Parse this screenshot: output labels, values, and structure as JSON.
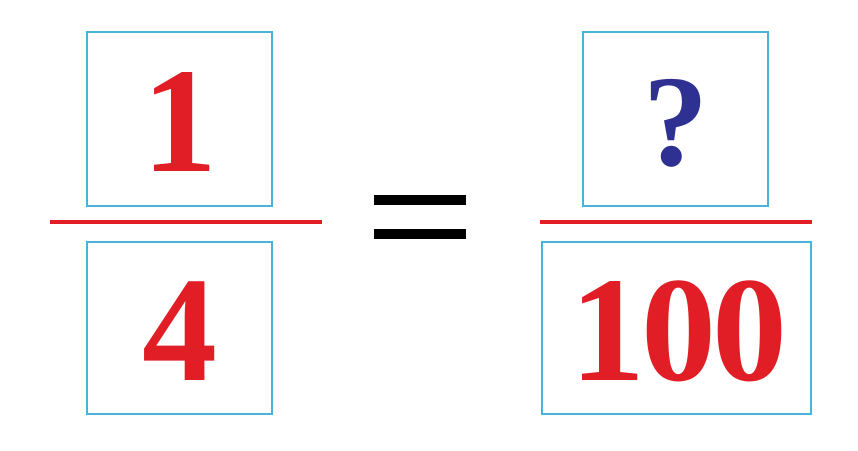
{
  "left_fraction": {
    "numerator": "1",
    "denominator": "4"
  },
  "equals": "=",
  "right_fraction": {
    "numerator": "?",
    "denominator": "100"
  },
  "colors": {
    "digit": "#e11e26",
    "question_mark": "#2e3192",
    "box_border": "#4bb3d6",
    "fraction_bar": "#e11e26",
    "equals_sign": "#000000"
  }
}
